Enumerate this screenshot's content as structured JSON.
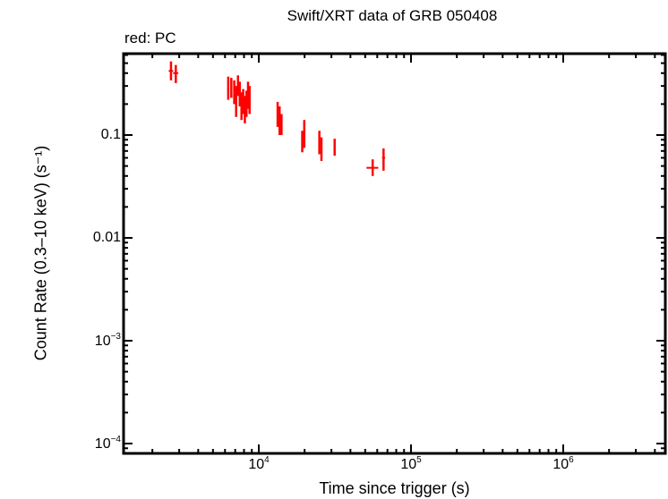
{
  "chart_data": {
    "type": "scatter",
    "title": "Swift/XRT data of GRB 050408",
    "subtitle": "red: PC",
    "xlabel": "Time since trigger (s)",
    "ylabel": "Count Rate (0.3–10 keV) (s⁻¹)",
    "xscale": "log",
    "yscale": "log",
    "xlim": [
      1300,
      4800000
    ],
    "ylim": [
      8.5e-05,
      0.75
    ],
    "grid": false,
    "legend": "none",
    "x_ticks": [
      {
        "value": 10000,
        "base": "10",
        "exp": "4"
      },
      {
        "value": 100000,
        "base": "10",
        "exp": "5"
      },
      {
        "value": 1000000,
        "base": "10",
        "exp": "6"
      }
    ],
    "y_ticks": [
      {
        "value": 0.1,
        "label": "0.1"
      },
      {
        "value": 0.01,
        "label": "0.01"
      },
      {
        "value": 0.001,
        "base": "10",
        "exp": "−3"
      },
      {
        "value": 0.0001,
        "base": "10",
        "exp": "−4"
      }
    ],
    "series": [
      {
        "name": "PC",
        "color": "#ff0000",
        "points": [
          {
            "x": 2650,
            "xlo": 2560,
            "xhi": 2740,
            "y": 0.42,
            "ylo": 0.34,
            "yhi": 0.52
          },
          {
            "x": 2850,
            "xlo": 2740,
            "xhi": 2960,
            "y": 0.4,
            "ylo": 0.32,
            "yhi": 0.48
          },
          {
            "x": 6300,
            "xlo": 6200,
            "xhi": 6400,
            "y": 0.28,
            "ylo": 0.22,
            "yhi": 0.37
          },
          {
            "x": 6600,
            "xlo": 6500,
            "xhi": 6700,
            "y": 0.3,
            "ylo": 0.23,
            "yhi": 0.36
          },
          {
            "x": 6900,
            "xlo": 6800,
            "xhi": 7000,
            "y": 0.27,
            "ylo": 0.2,
            "yhi": 0.34
          },
          {
            "x": 7100,
            "xlo": 7020,
            "xhi": 7180,
            "y": 0.22,
            "ylo": 0.15,
            "yhi": 0.3
          },
          {
            "x": 7300,
            "xlo": 7220,
            "xhi": 7380,
            "y": 0.3,
            "ylo": 0.24,
            "yhi": 0.38
          },
          {
            "x": 7500,
            "xlo": 7420,
            "xhi": 7580,
            "y": 0.25,
            "ylo": 0.19,
            "yhi": 0.33
          },
          {
            "x": 7700,
            "xlo": 7620,
            "xhi": 7780,
            "y": 0.19,
            "ylo": 0.14,
            "yhi": 0.26
          },
          {
            "x": 7900,
            "xlo": 7820,
            "xhi": 7980,
            "y": 0.21,
            "ylo": 0.16,
            "yhi": 0.28
          },
          {
            "x": 8100,
            "xlo": 8020,
            "xhi": 8180,
            "y": 0.17,
            "ylo": 0.13,
            "yhi": 0.24
          },
          {
            "x": 8300,
            "xlo": 8220,
            "xhi": 8380,
            "y": 0.2,
            "ylo": 0.15,
            "yhi": 0.27
          },
          {
            "x": 8500,
            "xlo": 8420,
            "xhi": 8580,
            "y": 0.25,
            "ylo": 0.18,
            "yhi": 0.33
          },
          {
            "x": 8700,
            "xlo": 8620,
            "xhi": 8780,
            "y": 0.22,
            "ylo": 0.16,
            "yhi": 0.3
          },
          {
            "x": 13300,
            "xlo": 13150,
            "xhi": 13450,
            "y": 0.16,
            "ylo": 0.12,
            "yhi": 0.21
          },
          {
            "x": 13700,
            "xlo": 13550,
            "xhi": 13850,
            "y": 0.14,
            "ylo": 0.1,
            "yhi": 0.19
          },
          {
            "x": 14100,
            "xlo": 13950,
            "xhi": 14250,
            "y": 0.12,
            "ylo": 0.1,
            "yhi": 0.16
          },
          {
            "x": 19300,
            "xlo": 19150,
            "xhi": 19450,
            "y": 0.085,
            "ylo": 0.068,
            "yhi": 0.11
          },
          {
            "x": 19900,
            "xlo": 19750,
            "xhi": 20050,
            "y": 0.1,
            "ylo": 0.075,
            "yhi": 0.14
          },
          {
            "x": 25000,
            "xlo": 24800,
            "xhi": 25200,
            "y": 0.085,
            "ylo": 0.065,
            "yhi": 0.11
          },
          {
            "x": 25800,
            "xlo": 25600,
            "xhi": 26000,
            "y": 0.072,
            "ylo": 0.056,
            "yhi": 0.095
          },
          {
            "x": 31500,
            "xlo": 31200,
            "xhi": 31800,
            "y": 0.077,
            "ylo": 0.063,
            "yhi": 0.092
          },
          {
            "x": 56000,
            "xlo": 51000,
            "xhi": 61000,
            "y": 0.048,
            "ylo": 0.04,
            "yhi": 0.058
          },
          {
            "x": 66000,
            "xlo": 64500,
            "xhi": 67500,
            "y": 0.06,
            "ylo": 0.045,
            "yhi": 0.074
          }
        ]
      }
    ]
  }
}
